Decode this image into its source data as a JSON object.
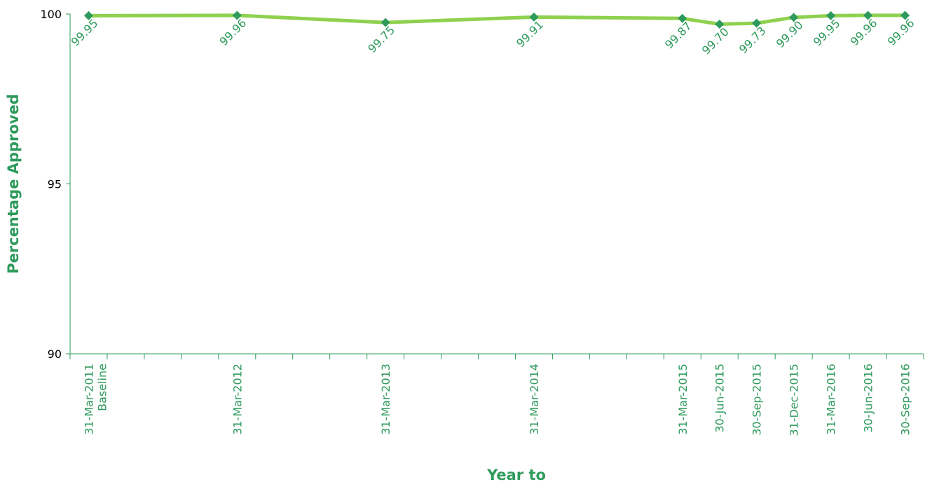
{
  "chart_data": {
    "type": "line",
    "title": "",
    "xlabel": "Year to",
    "ylabel": "Percentage Approved",
    "ylim": [
      90,
      100
    ],
    "yticks": [
      "90",
      "95",
      "100"
    ],
    "grid": false,
    "legend": "none",
    "categories": [
      "31-Mar-2011",
      "31-Mar-2012",
      "31-Mar-2013",
      "31-Mar-2014",
      "31-Mar-2015",
      "30-Jun-2015",
      "30-Sep-2015",
      "31-Dec-2015",
      "31-Mar-2016",
      "30-Jun-2016",
      "30-Sep-2016"
    ],
    "category_sublabels": [
      "Baseline",
      "",
      "",
      "",
      "",
      "",
      "",
      "",
      "",
      "",
      ""
    ],
    "x_index": [
      0,
      4,
      8,
      12,
      16,
      17,
      18,
      19,
      20,
      21,
      22
    ],
    "series": [
      {
        "values": [
          99.95,
          99.96,
          99.75,
          99.91,
          99.87,
          99.7,
          99.73,
          99.9,
          99.95,
          99.96,
          99.96
        ],
        "data_labels": [
          "99.95",
          "99.96",
          "99.75",
          "99.91",
          "99.87",
          "99.70",
          "99.73",
          "99.90",
          "99.95",
          "99.96",
          "99.96"
        ]
      }
    ],
    "colors": {
      "line": "#8fd14f",
      "marker": "#2e9a5c",
      "text": "#2e9a5c",
      "axis": "#2e9a5c"
    }
  }
}
